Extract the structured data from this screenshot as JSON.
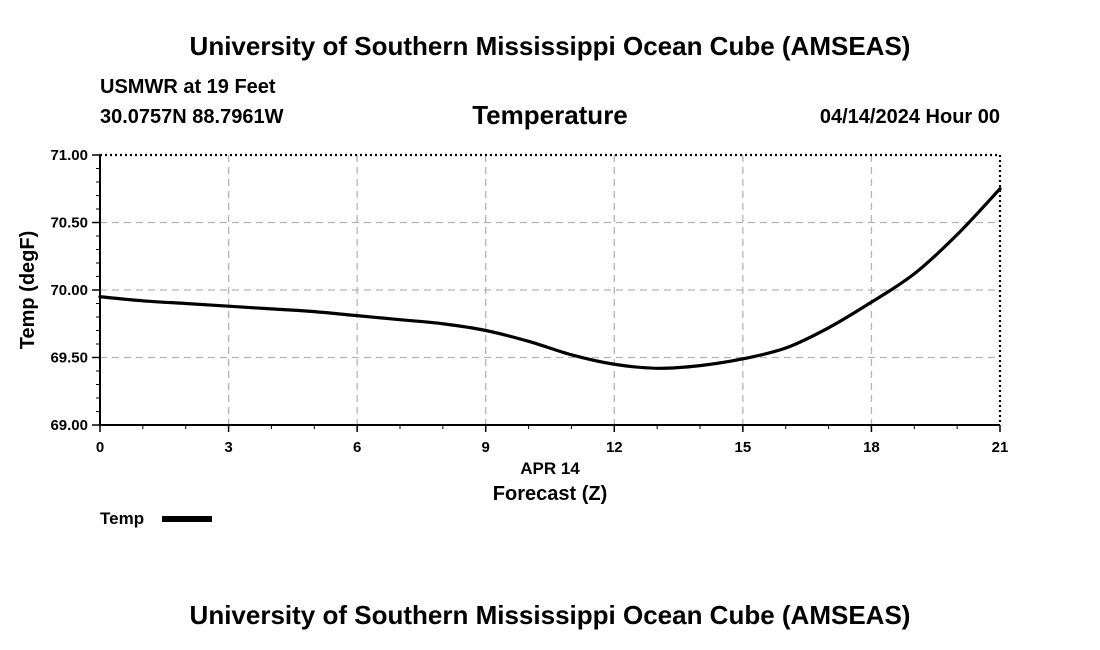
{
  "header": {
    "title": "University of Southern Mississippi Ocean Cube (AMSEAS)",
    "station": "USMWR at 19 Feet",
    "coords": "30.0757N  88.7961W",
    "chart_title": "Temperature",
    "datetime": "04/14/2024 Hour 00"
  },
  "footer": {
    "title": "University of Southern Mississippi Ocean Cube (AMSEAS)"
  },
  "chart_data": {
    "type": "line",
    "title": "Temperature",
    "xlabel": "Forecast (Z)",
    "xlabel_date": "APR 14",
    "ylabel": "Temp (degF)",
    "xlim": [
      0,
      21
    ],
    "ylim": [
      69.0,
      71.0
    ],
    "x_ticks": [
      "0",
      "3",
      "6",
      "9",
      "12",
      "15",
      "18",
      "21"
    ],
    "y_ticks": [
      "69.00",
      "69.50",
      "70.00",
      "70.50",
      "71.00"
    ],
    "grid": true,
    "legend_position": "bottom-left",
    "series": [
      {
        "name": "Temp",
        "color": "#000000",
        "x": [
          0,
          1,
          2,
          3,
          4,
          5,
          6,
          7,
          8,
          9,
          10,
          11,
          12,
          13,
          14,
          15,
          16,
          17,
          18,
          19,
          20,
          21
        ],
        "values": [
          69.95,
          69.92,
          69.9,
          69.88,
          69.86,
          69.84,
          69.81,
          69.78,
          69.75,
          69.7,
          69.62,
          69.52,
          69.45,
          69.42,
          69.44,
          69.49,
          69.57,
          69.72,
          69.91,
          70.12,
          70.41,
          70.75
        ]
      }
    ]
  }
}
